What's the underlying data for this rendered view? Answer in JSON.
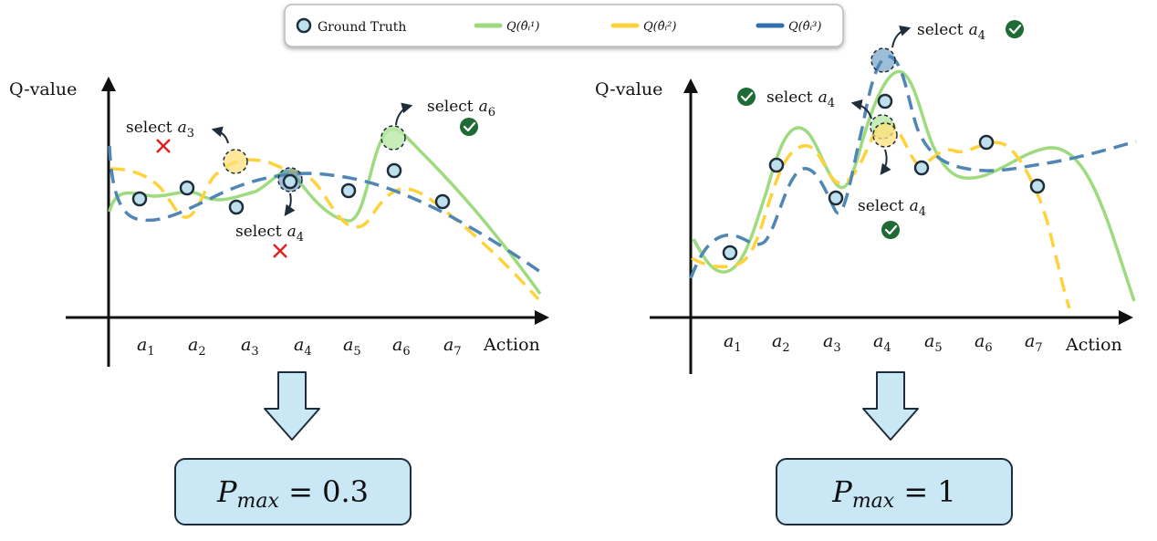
{
  "legend": {
    "ground_truth": "Ground Truth",
    "q1": "Q(θ̂ᵢ¹)",
    "q2": "Q(θ̂ᵢ²)",
    "q3": "Q(θ̂ᵢ³)"
  },
  "colors": {
    "q1": "#9ddb7e",
    "q2": "#ffd23c",
    "q3": "#4f86b5",
    "ground_truth_fill": "#bfe0ef",
    "box_fill": "#c9e7f5",
    "check": "#1e6b35",
    "cross": "#e02020"
  },
  "left_panel": {
    "y_axis_label": "Q-value",
    "x_axis_label": "Action",
    "tick_labels": [
      "a",
      "a",
      "a",
      "a",
      "a",
      "a",
      "a"
    ],
    "tick_subs": [
      "1",
      "2",
      "3",
      "4",
      "5",
      "6",
      "7"
    ],
    "annotations": [
      {
        "word": "select",
        "var": "a",
        "sub": "3",
        "mark": "cross"
      },
      {
        "word": "select",
        "var": "a",
        "sub": "4",
        "mark": "cross"
      },
      {
        "word": "select",
        "var": "a",
        "sub": "6",
        "mark": "check"
      }
    ],
    "result": {
      "p": "P",
      "sub": "max",
      "rest": " = 0.3"
    }
  },
  "right_panel": {
    "y_axis_label": "Q-value",
    "x_axis_label": "Action",
    "tick_labels": [
      "a",
      "a",
      "a",
      "a",
      "a",
      "a",
      "a"
    ],
    "tick_subs": [
      "1",
      "2",
      "3",
      "4",
      "5",
      "6",
      "7"
    ],
    "annotations": [
      {
        "word": "select",
        "var": "a",
        "sub": "4",
        "mark": "check"
      },
      {
        "word": "select",
        "var": "a",
        "sub": "4",
        "mark": "check"
      },
      {
        "word": "select",
        "var": "a",
        "sub": "4",
        "mark": "check"
      }
    ],
    "result": {
      "p": "P",
      "sub": "max",
      "rest": " = 1"
    }
  }
}
